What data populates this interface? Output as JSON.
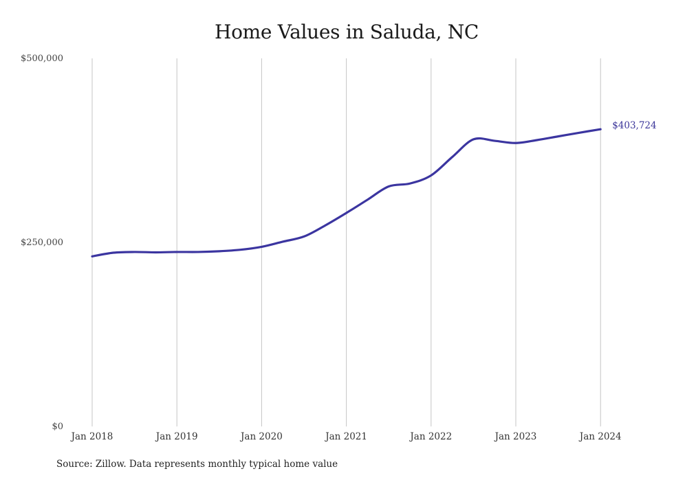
{
  "title": "Home Values in Saluda, NC",
  "source": "Source: Zillow. Data represents monthly typical home value",
  "colors": {
    "line": "#3b35a0",
    "grid": "#c4c4c4",
    "end_label": "#3a3499"
  },
  "end_label": "$403,724",
  "chart_data": {
    "type": "line",
    "title": "Home Values in Saluda, NC",
    "xlabel": "",
    "ylabel": "",
    "ylim": [
      0,
      500000
    ],
    "yticks": [
      0,
      250000,
      500000
    ],
    "ytick_labels": [
      "$0",
      "$250,000",
      "$500,000"
    ],
    "xtick_labels": [
      "Jan 2018",
      "Jan 2019",
      "Jan 2020",
      "Jan 2021",
      "Jan 2022",
      "Jan 2023",
      "Jan 2024"
    ],
    "grid": "vertical at x ticks",
    "legend": "none",
    "annotations": [
      {
        "x": "Jan 2024",
        "text": "$403,724"
      }
    ],
    "series": [
      {
        "name": "Typical home value",
        "x": [
          "Jan 2018",
          "Apr 2018",
          "Jul 2018",
          "Oct 2018",
          "Jan 2019",
          "Apr 2019",
          "Jul 2019",
          "Oct 2019",
          "Jan 2020",
          "Apr 2020",
          "Jul 2020",
          "Oct 2020",
          "Jan 2021",
          "Apr 2021",
          "Jul 2021",
          "Oct 2021",
          "Jan 2022",
          "Apr 2022",
          "Jul 2022",
          "Oct 2022",
          "Jan 2023",
          "Apr 2023",
          "Jul 2023",
          "Oct 2023",
          "Jan 2024"
        ],
        "values": [
          231000,
          236000,
          237000,
          236500,
          237000,
          237000,
          238000,
          240000,
          244000,
          251000,
          258000,
          273000,
          290000,
          308000,
          326000,
          330000,
          341000,
          366000,
          390000,
          388000,
          385000,
          389000,
          394000,
          399000,
          403724
        ]
      }
    ]
  }
}
